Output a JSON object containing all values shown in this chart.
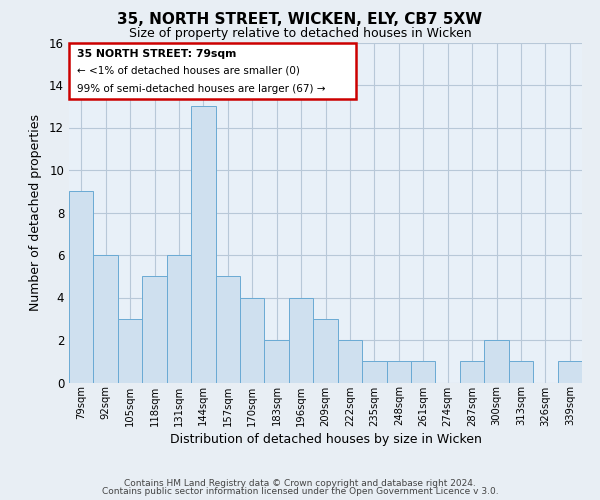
{
  "title": "35, NORTH STREET, WICKEN, ELY, CB7 5XW",
  "subtitle": "Size of property relative to detached houses in Wicken",
  "xlabel": "Distribution of detached houses by size in Wicken",
  "ylabel": "Number of detached properties",
  "bins": [
    "79sqm",
    "92sqm",
    "105sqm",
    "118sqm",
    "131sqm",
    "144sqm",
    "157sqm",
    "170sqm",
    "183sqm",
    "196sqm",
    "209sqm",
    "222sqm",
    "235sqm",
    "248sqm",
    "261sqm",
    "274sqm",
    "287sqm",
    "300sqm",
    "313sqm",
    "326sqm",
    "339sqm"
  ],
  "values": [
    9,
    6,
    3,
    5,
    6,
    13,
    5,
    4,
    2,
    4,
    3,
    2,
    1,
    1,
    1,
    0,
    1,
    2,
    1,
    0,
    1
  ],
  "bar_color": "#cfe0ef",
  "bar_edge_color": "#6aaad4",
  "annotation_box_edge_color": "#cc0000",
  "annotation_text_line1": "35 NORTH STREET: 79sqm",
  "annotation_text_line2": "← <1% of detached houses are smaller (0)",
  "annotation_text_line3": "99% of semi-detached houses are larger (67) →",
  "ylim": [
    0,
    16
  ],
  "yticks": [
    0,
    2,
    4,
    6,
    8,
    10,
    12,
    14,
    16
  ],
  "footer1": "Contains HM Land Registry data © Crown copyright and database right 2024.",
  "footer2": "Contains public sector information licensed under the Open Government Licence v 3.0.",
  "bg_color": "#e8eef4",
  "plot_bg_color": "#e8f0f8",
  "grid_color": "#b8c8d8"
}
